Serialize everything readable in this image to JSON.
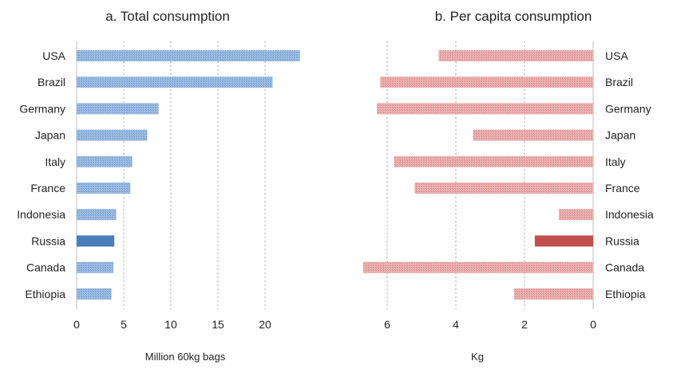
{
  "chart_data": [
    {
      "type": "bar",
      "orientation": "horizontal",
      "title": "a. Total consumption",
      "xlabel": "Million 60kg bags",
      "ylabel": "",
      "categories": [
        "USA",
        "Brazil",
        "Germany",
        "Japan",
        "Italy",
        "France",
        "Indonesia",
        "Russia",
        "Canada",
        "Ethiopia"
      ],
      "values": [
        23.7,
        20.8,
        8.7,
        7.5,
        5.9,
        5.7,
        4.2,
        4.0,
        3.9,
        3.7
      ],
      "xlim": [
        0,
        24
      ],
      "xticks": [
        0,
        5,
        10,
        15,
        20
      ],
      "grid": "vertical dotted",
      "highlight": "Russia",
      "color": "#7fa7d6",
      "highlight_color": "#4a7ebb"
    },
    {
      "type": "bar",
      "orientation": "horizontal",
      "title": "b. Per capita consumption",
      "xlabel": "Kg",
      "ylabel": "",
      "categories": [
        "USA",
        "Brazil",
        "Germany",
        "Japan",
        "Italy",
        "France",
        "Indonesia",
        "Russia",
        "Canada",
        "Ethiopia"
      ],
      "values": [
        4.5,
        6.2,
        6.3,
        3.5,
        5.8,
        5.2,
        1.0,
        1.7,
        6.7,
        2.3
      ],
      "xlim": [
        0,
        6.7
      ],
      "xticks": [
        6,
        4,
        2,
        0
      ],
      "reversed_x": true,
      "grid": "vertical dotted",
      "highlight": "Russia",
      "color": "#e09a9a",
      "highlight_color": "#c0504d"
    }
  ]
}
